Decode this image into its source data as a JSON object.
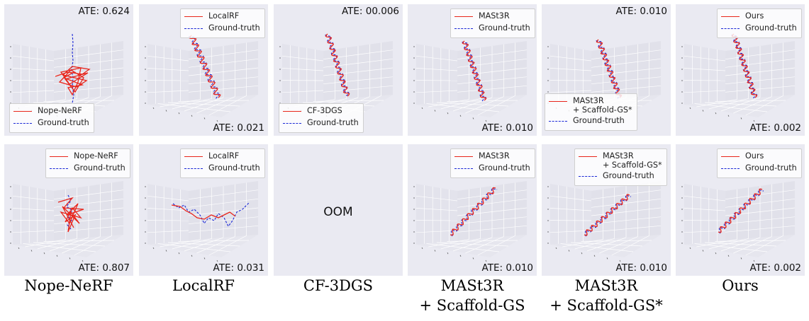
{
  "columns": [
    {
      "label": "Nope-NeRF",
      "label_line2": ""
    },
    {
      "label": "LocalRF",
      "label_line2": ""
    },
    {
      "label": "CF-3DGS",
      "label_line2": ""
    },
    {
      "label": "MASt3R",
      "label_line2": "+ Scaffold-GS"
    },
    {
      "label": "MASt3R",
      "label_line2": "+ Scaffold-GS*"
    },
    {
      "label": "Ours",
      "label_line2": ""
    }
  ],
  "rows": [
    {
      "panels": [
        {
          "ate": "ATE: 0.624",
          "legend": [
            "Nope-NeRF",
            "Ground-truth"
          ]
        },
        {
          "ate": "ATE: 0.021",
          "legend": [
            "LocalRF",
            "Ground-truth"
          ]
        },
        {
          "ate": "ATE: 00.006",
          "legend": [
            "CF-3DGS",
            "Ground-truth"
          ]
        },
        {
          "ate": "ATE: 0.010",
          "legend": [
            "MASt3R",
            "Ground-truth"
          ]
        },
        {
          "ate": "ATE: 0.010",
          "legend": [
            "MASt3R",
            "+ Scaffold-GS*",
            "Ground-truth"
          ]
        },
        {
          "ate": "ATE: 0.002",
          "legend": [
            "Ours",
            "Ground-truth"
          ]
        }
      ]
    },
    {
      "panels": [
        {
          "ate": "ATE: 0.807",
          "legend": [
            "Nope-NeRF",
            "Ground-truth"
          ]
        },
        {
          "ate": "ATE: 0.031",
          "legend": [
            "LocalRF",
            "Ground-truth"
          ]
        },
        {
          "oom": "OOM"
        },
        {
          "ate": "ATE: 0.010",
          "legend": [
            "MASt3R",
            "Ground-truth"
          ]
        },
        {
          "ate": "ATE: 0.010",
          "legend": [
            "MASt3R",
            "+ Scaffold-GS*",
            "Ground-truth"
          ]
        },
        {
          "ate": "ATE: 0.002",
          "legend": [
            "Ours",
            "Ground-truth"
          ]
        }
      ]
    }
  ],
  "colors": {
    "estimate": "#e8251b",
    "ground_truth": "#1a27d6",
    "panel_bg": "#eaeaf2"
  }
}
